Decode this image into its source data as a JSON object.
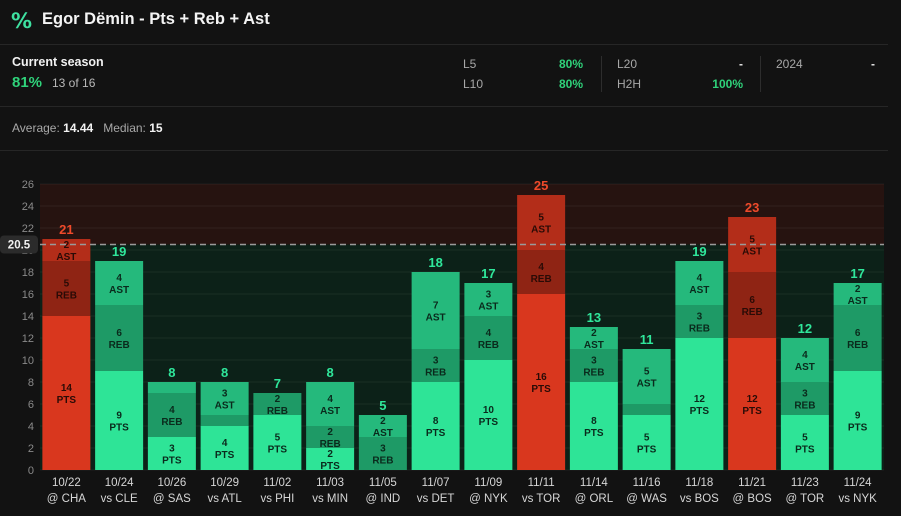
{
  "header": {
    "icon": "percent-icon",
    "title": "Egor Dëmin - Pts + Reb + Ast"
  },
  "season": {
    "label": "Current season",
    "pct": "81%",
    "record": "13 of 16"
  },
  "splits": [
    {
      "label": "L5",
      "value": "80%"
    },
    {
      "label": "L10",
      "value": "80%"
    },
    {
      "label": "L20",
      "value": "-"
    },
    {
      "label": "H2H",
      "value": "100%"
    },
    {
      "label": "2024",
      "value": "-"
    }
  ],
  "averages": {
    "average_label": "Average:",
    "average_value": "14.44",
    "median_label": "Median:",
    "median_value": "15"
  },
  "colors": {
    "hit": "#2ee497",
    "hit_mid": "#25b97c",
    "hit_dark": "#1e9a66",
    "miss": "#d9371e",
    "miss_mid": "#b32d19",
    "miss_dark": "#8f2414",
    "hit_text": "#2fe79b",
    "miss_text": "#ef4a2a"
  },
  "chart_data": {
    "type": "bar",
    "stacked": true,
    "line_value": 20.5,
    "line_label": "20.5",
    "ylim": [
      0,
      26
    ],
    "yticks": [
      0,
      2,
      4,
      6,
      8,
      10,
      12,
      14,
      16,
      18,
      20,
      22,
      24,
      26
    ],
    "games": [
      {
        "date": "10/22",
        "opp": "@ CHA",
        "total": 21,
        "pts": 14,
        "reb": 5,
        "ast": 2
      },
      {
        "date": "10/24",
        "opp": "vs CLE",
        "total": 19,
        "pts": 9,
        "reb": 6,
        "ast": 4
      },
      {
        "date": "10/26",
        "opp": "@ SAS",
        "total": 8,
        "pts": 3,
        "reb": 4,
        "ast": 1
      },
      {
        "date": "10/29",
        "opp": "vs ATL",
        "total": 8,
        "pts": 4,
        "reb": 1,
        "ast": 3
      },
      {
        "date": "11/02",
        "opp": "vs PHI",
        "total": 7,
        "pts": 5,
        "reb": 2,
        "ast": 0
      },
      {
        "date": "11/03",
        "opp": "vs MIN",
        "total": 8,
        "pts": 2,
        "reb": 2,
        "ast": 4
      },
      {
        "date": "11/05",
        "opp": "@ IND",
        "total": 5,
        "pts": 0,
        "reb": 3,
        "ast": 2
      },
      {
        "date": "11/07",
        "opp": "vs DET",
        "total": 18,
        "pts": 8,
        "reb": 3,
        "ast": 7
      },
      {
        "date": "11/09",
        "opp": "@ NYK",
        "total": 17,
        "pts": 10,
        "reb": 4,
        "ast": 3
      },
      {
        "date": "11/11",
        "opp": "vs TOR",
        "total": 25,
        "pts": 16,
        "reb": 4,
        "ast": 5
      },
      {
        "date": "11/14",
        "opp": "@ ORL",
        "total": 13,
        "pts": 8,
        "reb": 3,
        "ast": 2
      },
      {
        "date": "11/16",
        "opp": "@ WAS",
        "total": 11,
        "pts": 5,
        "reb": 1,
        "ast": 5
      },
      {
        "date": "11/18",
        "opp": "vs BOS",
        "total": 19,
        "pts": 12,
        "reb": 3,
        "ast": 4
      },
      {
        "date": "11/21",
        "opp": "@ BOS",
        "total": 23,
        "pts": 12,
        "reb": 6,
        "ast": 5
      },
      {
        "date": "11/23",
        "opp": "@ TOR",
        "total": 12,
        "pts": 5,
        "reb": 3,
        "ast": 4
      },
      {
        "date": "11/24",
        "opp": "vs NYK",
        "total": 17,
        "pts": 9,
        "reb": 6,
        "ast": 2
      }
    ],
    "segment_labels": {
      "pts": "PTS",
      "reb": "REB",
      "ast": "AST"
    }
  }
}
